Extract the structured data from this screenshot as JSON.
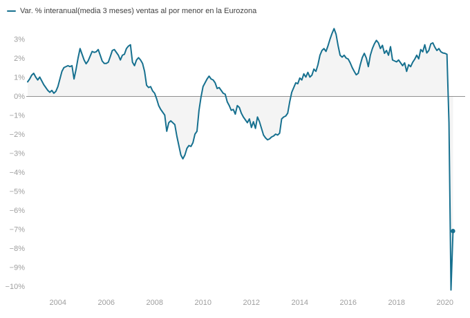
{
  "legend": {
    "label": "Var. % interanual(media 3 meses) ventas al por menor en la Eurozona"
  },
  "colors": {
    "line": "#16708F",
    "area_fill": "#f4f4f4",
    "zero_line": "#8f8f8f",
    "tick_labels": "#9e9e9e",
    "legend_text": "#3f3f3f",
    "background": "#ffffff"
  },
  "chart_data": {
    "type": "line",
    "title": "Var. % interanual(media 3 meses) ventas al por menor en la Eurozona",
    "xlabel": "",
    "ylabel": "",
    "legend_position": "top-left",
    "grid": false,
    "area_fill_to_zero": true,
    "last_point_marker": true,
    "frequency": "monthly",
    "x_start": "2002-10",
    "x_end": "2020-05",
    "ylim": [
      -10.6,
      3.8
    ],
    "y_ticks": [
      {
        "value": 3,
        "label": "3%"
      },
      {
        "value": 2,
        "label": "2%"
      },
      {
        "value": 1,
        "label": "1%"
      },
      {
        "value": 0,
        "label": "0%"
      },
      {
        "value": -1,
        "label": "−1%"
      },
      {
        "value": -2,
        "label": "−2%"
      },
      {
        "value": -3,
        "label": "−3%"
      },
      {
        "value": -4,
        "label": "−4%"
      },
      {
        "value": -5,
        "label": "−5%"
      },
      {
        "value": -6,
        "label": "−6%"
      },
      {
        "value": -7,
        "label": "−7%"
      },
      {
        "value": -8,
        "label": "−8%"
      },
      {
        "value": -9,
        "label": "−9%"
      },
      {
        "value": -10,
        "label": "−10%"
      }
    ],
    "x_ticks": [
      {
        "year": 2004,
        "label": "2004"
      },
      {
        "year": 2006,
        "label": "2006"
      },
      {
        "year": 2008,
        "label": "2008"
      },
      {
        "year": 2010,
        "label": "2010"
      },
      {
        "year": 2012,
        "label": "2012"
      },
      {
        "year": 2014,
        "label": "2014"
      },
      {
        "year": 2016,
        "label": "2016"
      },
      {
        "year": 2018,
        "label": "2018"
      },
      {
        "year": 2020,
        "label": "2020"
      }
    ],
    "series": [
      {
        "name": "Var. % interanual(media 3 meses) ventas al por menor en la Eurozona",
        "values": [
          0.75,
          0.9,
          1.1,
          1.2,
          1.0,
          0.85,
          1.0,
          0.8,
          0.6,
          0.45,
          0.3,
          0.2,
          0.3,
          0.15,
          0.25,
          0.5,
          0.9,
          1.3,
          1.5,
          1.55,
          1.6,
          1.55,
          1.6,
          0.9,
          1.4,
          2.0,
          2.5,
          2.2,
          1.9,
          1.7,
          1.85,
          2.1,
          2.35,
          2.3,
          2.33,
          2.45,
          2.15,
          1.84,
          1.72,
          1.72,
          1.78,
          2.08,
          2.4,
          2.45,
          2.3,
          2.15,
          1.9,
          2.15,
          2.2,
          2.5,
          2.63,
          2.7,
          1.78,
          1.6,
          1.9,
          2.02,
          1.9,
          1.72,
          1.3,
          0.57,
          0.45,
          0.5,
          0.27,
          0.15,
          -0.15,
          -0.5,
          -0.7,
          -0.85,
          -1.0,
          -1.85,
          -1.4,
          -1.3,
          -1.4,
          -1.5,
          -2.1,
          -2.6,
          -3.1,
          -3.3,
          -3.1,
          -2.75,
          -2.6,
          -2.65,
          -2.45,
          -2.0,
          -1.85,
          -0.75,
          -0.05,
          0.5,
          0.7,
          0.9,
          1.05,
          0.9,
          0.85,
          0.7,
          0.4,
          0.45,
          0.3,
          0.15,
          0.1,
          -0.3,
          -0.5,
          -0.75,
          -0.7,
          -0.95,
          -0.5,
          -0.6,
          -0.9,
          -1.1,
          -1.25,
          -1.4,
          -1.2,
          -1.65,
          -1.35,
          -1.7,
          -1.1,
          -1.35,
          -1.7,
          -2.05,
          -2.2,
          -2.3,
          -2.25,
          -2.15,
          -2.1,
          -2.0,
          -2.05,
          -1.95,
          -1.2,
          -1.1,
          -1.05,
          -0.9,
          -0.3,
          0.2,
          0.45,
          0.7,
          0.65,
          0.95,
          0.85,
          1.17,
          1.0,
          1.25,
          1.0,
          1.1,
          1.42,
          1.3,
          1.65,
          2.15,
          2.4,
          2.5,
          2.35,
          2.65,
          3.0,
          3.3,
          3.55,
          3.25,
          2.65,
          2.15,
          2.05,
          2.15,
          2.0,
          1.95,
          1.75,
          1.5,
          1.3,
          1.12,
          1.2,
          1.65,
          2.03,
          2.25,
          2.0,
          1.55,
          2.15,
          2.5,
          2.75,
          2.93,
          2.8,
          2.5,
          2.67,
          2.25,
          2.4,
          2.15,
          2.6,
          1.9,
          1.85,
          1.8,
          1.9,
          1.75,
          1.6,
          1.75,
          1.3,
          1.65,
          1.55,
          1.78,
          1.94,
          2.15,
          1.96,
          2.45,
          2.33,
          2.7,
          2.27,
          2.4,
          2.75,
          2.8,
          2.57,
          2.4,
          2.5,
          2.33,
          2.27,
          2.25,
          2.2,
          -1.4,
          -10.2,
          -7.1
        ]
      }
    ]
  }
}
